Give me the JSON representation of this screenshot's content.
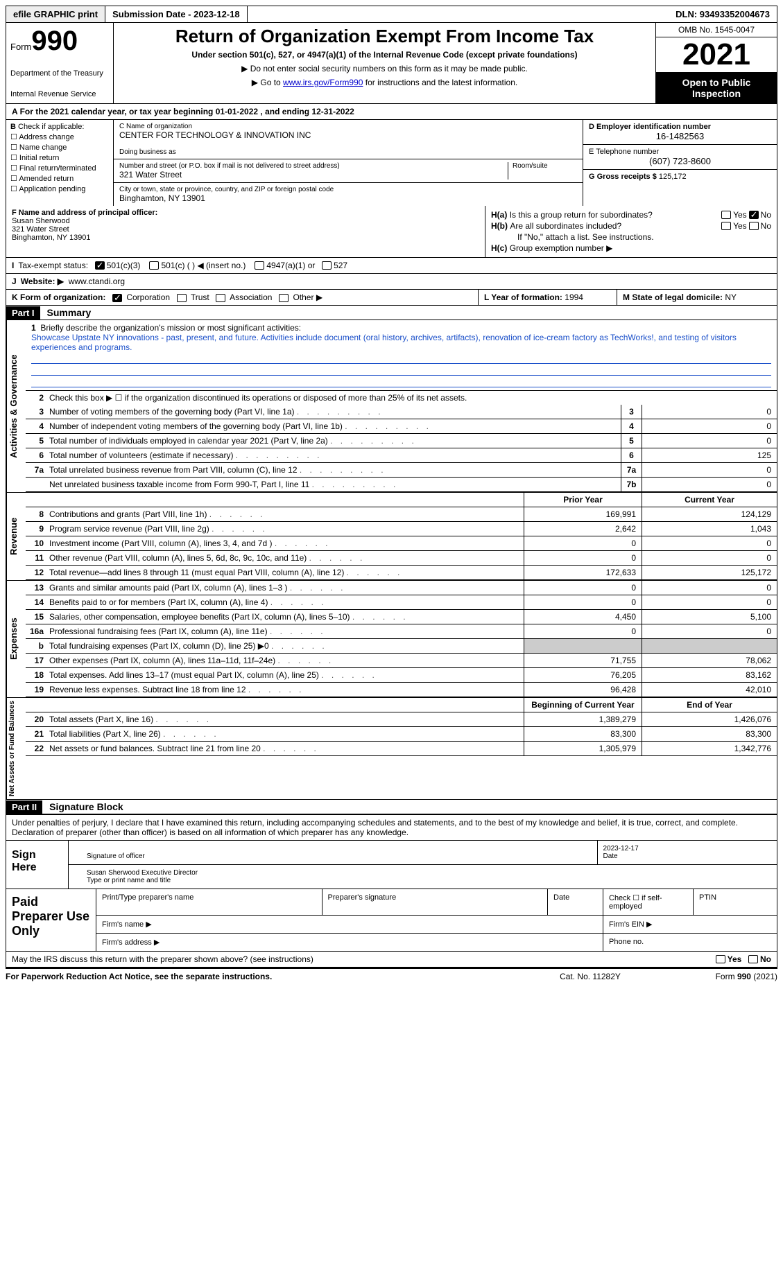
{
  "top_bar": {
    "efile": "efile GRAPHIC print",
    "submission": "Submission Date - 2023-12-18",
    "dln": "DLN: 93493352004673"
  },
  "header": {
    "form_word": "Form",
    "form_num": "990",
    "title": "Return of Organization Exempt From Income Tax",
    "subtitle": "Under section 501(c), 527, or 4947(a)(1) of the Internal Revenue Code (except private foundations)",
    "note1": "Do not enter social security numbers on this form as it may be made public.",
    "note2_pre": "Go to ",
    "note2_link": "www.irs.gov/Form990",
    "note2_post": " for instructions and the latest information.",
    "dept": "Department of the Treasury",
    "irs": "Internal Revenue Service",
    "omb": "OMB No. 1545-0047",
    "year": "2021",
    "open": "Open to Public Inspection"
  },
  "cal_year": "For the 2021 calendar year, or tax year beginning 01-01-2022     , and ending 12-31-2022",
  "section_b": {
    "label": "Check if applicable:",
    "opts": [
      "Address change",
      "Name change",
      "Initial return",
      "Final return/terminated",
      "Amended return",
      "Application pending"
    ]
  },
  "section_c": {
    "name_lbl": "C Name of organization",
    "name": "CENTER FOR TECHNOLOGY & INNOVATION INC",
    "dba_lbl": "Doing business as",
    "addr_lbl": "Number and street (or P.O. box if mail is not delivered to street address)",
    "room_lbl": "Room/suite",
    "addr": "321 Water Street",
    "city_lbl": "City or town, state or province, country, and ZIP or foreign postal code",
    "city": "Binghamton, NY  13901"
  },
  "section_d": {
    "ein_lbl": "D Employer identification number",
    "ein": "16-1482563",
    "tel_lbl": "E Telephone number",
    "tel": "(607) 723-8600",
    "gross_lbl": "G Gross receipts $",
    "gross": "125,172"
  },
  "section_f": {
    "lbl": "F Name and address of principal officer:",
    "name": "Susan Sherwood",
    "addr1": "321 Water Street",
    "addr2": "Binghamton, NY  13901"
  },
  "section_h": {
    "ha": "Is this a group return for subordinates?",
    "hb": "Are all subordinates included?",
    "hb_note": "If \"No,\" attach a list. See instructions.",
    "hc": "Group exemption number ▶"
  },
  "tax_exempt": {
    "lbl": "Tax-exempt status:",
    "o1": "501(c)(3)",
    "o2": "501(c) (   ) ◀ (insert no.)",
    "o3": "4947(a)(1) or",
    "o4": "527"
  },
  "website": {
    "lbl": "Website: ▶",
    "val": "www.ctandi.org"
  },
  "form_org": {
    "lbl": "K Form of organization:",
    "opts": [
      "Corporation",
      "Trust",
      "Association",
      "Other ▶"
    ]
  },
  "l_year": {
    "lbl": "L Year of formation:",
    "val": "1994"
  },
  "m_state": {
    "lbl": "M State of legal domicile:",
    "val": "NY"
  },
  "part1": {
    "num": "Part I",
    "title": "Summary"
  },
  "mission": {
    "q": "Briefly describe the organization's mission or most significant activities:",
    "txt": "Showcase Upstate NY innovations - past, present, and future. Activities include document (oral history, archives, artifacts), renovation of ice-cream factory as TechWorks!, and testing of visitors experiences and programs."
  },
  "line2": "Check this box ▶ ☐  if the organization discontinued its operations or disposed of more than 25% of its net assets.",
  "gov_lines": [
    {
      "n": "3",
      "t": "Number of voting members of the governing body (Part VI, line 1a)",
      "box": "3",
      "v": "0"
    },
    {
      "n": "4",
      "t": "Number of independent voting members of the governing body (Part VI, line 1b)",
      "box": "4",
      "v": "0"
    },
    {
      "n": "5",
      "t": "Total number of individuals employed in calendar year 2021 (Part V, line 2a)",
      "box": "5",
      "v": "0"
    },
    {
      "n": "6",
      "t": "Total number of volunteers (estimate if necessary)",
      "box": "6",
      "v": "125"
    },
    {
      "n": "7a",
      "t": "Total unrelated business revenue from Part VIII, column (C), line 12",
      "box": "7a",
      "v": "0"
    },
    {
      "n": "",
      "t": "Net unrelated business taxable income from Form 990-T, Part I, line 11",
      "box": "7b",
      "v": "0"
    }
  ],
  "col_headers": {
    "prior": "Prior Year",
    "current": "Current Year"
  },
  "revenue": [
    {
      "n": "8",
      "t": "Contributions and grants (Part VIII, line 1h)",
      "p": "169,991",
      "c": "124,129"
    },
    {
      "n": "9",
      "t": "Program service revenue (Part VIII, line 2g)",
      "p": "2,642",
      "c": "1,043"
    },
    {
      "n": "10",
      "t": "Investment income (Part VIII, column (A), lines 3, 4, and 7d )",
      "p": "0",
      "c": "0"
    },
    {
      "n": "11",
      "t": "Other revenue (Part VIII, column (A), lines 5, 6d, 8c, 9c, 10c, and 11e)",
      "p": "0",
      "c": "0"
    },
    {
      "n": "12",
      "t": "Total revenue—add lines 8 through 11 (must equal Part VIII, column (A), line 12)",
      "p": "172,633",
      "c": "125,172"
    }
  ],
  "expenses": [
    {
      "n": "13",
      "t": "Grants and similar amounts paid (Part IX, column (A), lines 1–3 )",
      "p": "0",
      "c": "0"
    },
    {
      "n": "14",
      "t": "Benefits paid to or for members (Part IX, column (A), line 4)",
      "p": "0",
      "c": "0"
    },
    {
      "n": "15",
      "t": "Salaries, other compensation, employee benefits (Part IX, column (A), lines 5–10)",
      "p": "4,450",
      "c": "5,100"
    },
    {
      "n": "16a",
      "t": "Professional fundraising fees (Part IX, column (A), line 11e)",
      "p": "0",
      "c": "0"
    },
    {
      "n": "b",
      "t": "Total fundraising expenses (Part IX, column (D), line 25) ▶0",
      "p": "shade",
      "c": "shade"
    },
    {
      "n": "17",
      "t": "Other expenses (Part IX, column (A), lines 11a–11d, 11f–24e)",
      "p": "71,755",
      "c": "78,062"
    },
    {
      "n": "18",
      "t": "Total expenses. Add lines 13–17 (must equal Part IX, column (A), line 25)",
      "p": "76,205",
      "c": "83,162"
    },
    {
      "n": "19",
      "t": "Revenue less expenses. Subtract line 18 from line 12",
      "p": "96,428",
      "c": "42,010"
    }
  ],
  "net_headers": {
    "beg": "Beginning of Current Year",
    "end": "End of Year"
  },
  "net": [
    {
      "n": "20",
      "t": "Total assets (Part X, line 16)",
      "p": "1,389,279",
      "c": "1,426,076"
    },
    {
      "n": "21",
      "t": "Total liabilities (Part X, line 26)",
      "p": "83,300",
      "c": "83,300"
    },
    {
      "n": "22",
      "t": "Net assets or fund balances. Subtract line 21 from line 20",
      "p": "1,305,979",
      "c": "1,342,776"
    }
  ],
  "side_labels": {
    "gov": "Activities & Governance",
    "rev": "Revenue",
    "exp": "Expenses",
    "net": "Net Assets or Fund Balances"
  },
  "part2": {
    "num": "Part II",
    "title": "Signature Block"
  },
  "sig_decl": "Under penalties of perjury, I declare that I have examined this return, including accompanying schedules and statements, and to the best of my knowledge and belief, it is true, correct, and complete. Declaration of preparer (other than officer) is based on all information of which preparer has any knowledge.",
  "sign_here": "Sign Here",
  "sig": {
    "date": "2023-12-17",
    "sig_lbl": "Signature of officer",
    "date_lbl": "Date",
    "name": "Susan Sherwood  Executive Director",
    "name_lbl": "Type or print name and title"
  },
  "paid_prep": "Paid Preparer Use Only",
  "prep": {
    "h1": "Print/Type preparer's name",
    "h2": "Preparer's signature",
    "h3": "Date",
    "h4": "Check ☐ if self-employed",
    "h5": "PTIN",
    "firm_name": "Firm's name   ▶",
    "firm_ein": "Firm's EIN ▶",
    "firm_addr": "Firm's address ▶",
    "phone": "Phone no."
  },
  "discuss": "May the IRS discuss this return with the preparer shown above? (see instructions)",
  "footer": {
    "pra": "For Paperwork Reduction Act Notice, see the separate instructions.",
    "cat": "Cat. No. 11282Y",
    "form": "Form 990 (2021)"
  }
}
